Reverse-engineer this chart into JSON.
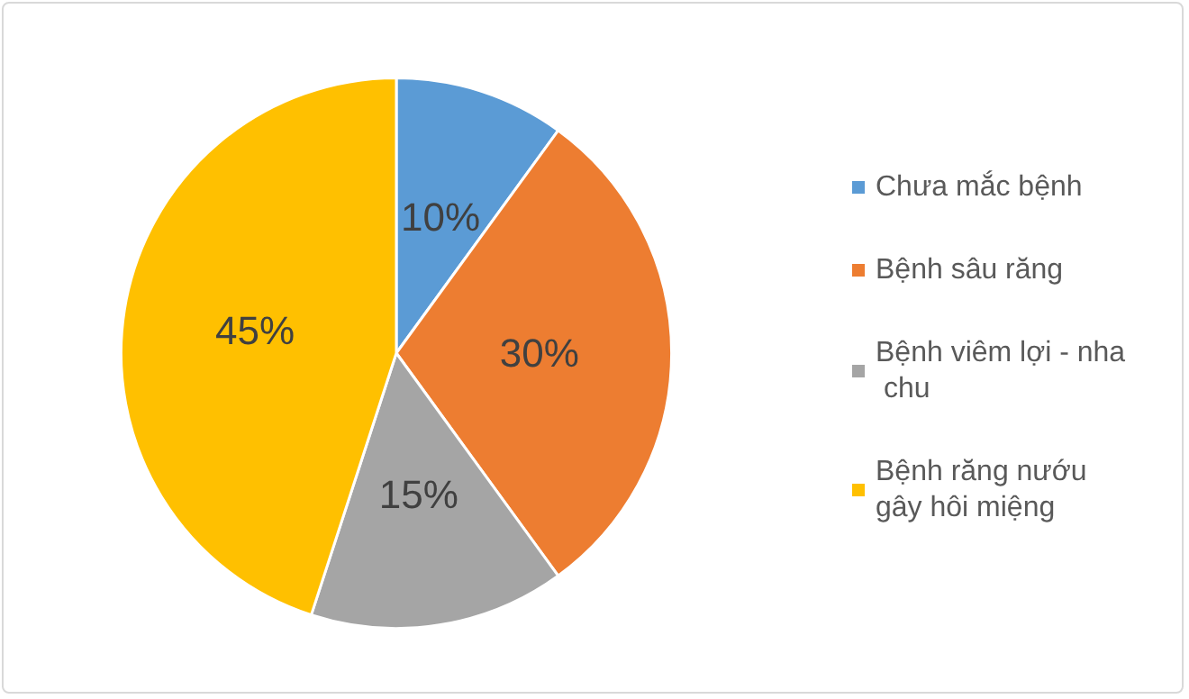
{
  "chart_data": {
    "type": "pie",
    "categories": [
      "Chưa mắc bệnh",
      "Bệnh sâu răng",
      "Bệnh viêm lợi - nha chu",
      "Bệnh răng nướu gây hôi miệng"
    ],
    "values": [
      10,
      30,
      15,
      45
    ],
    "colors": [
      "#5b9bd5",
      "#ed7d31",
      "#a5a5a5",
      "#ffc000"
    ],
    "value_labels": [
      "10%",
      "30%",
      "15%",
      "45%"
    ],
    "legend": "right"
  }
}
